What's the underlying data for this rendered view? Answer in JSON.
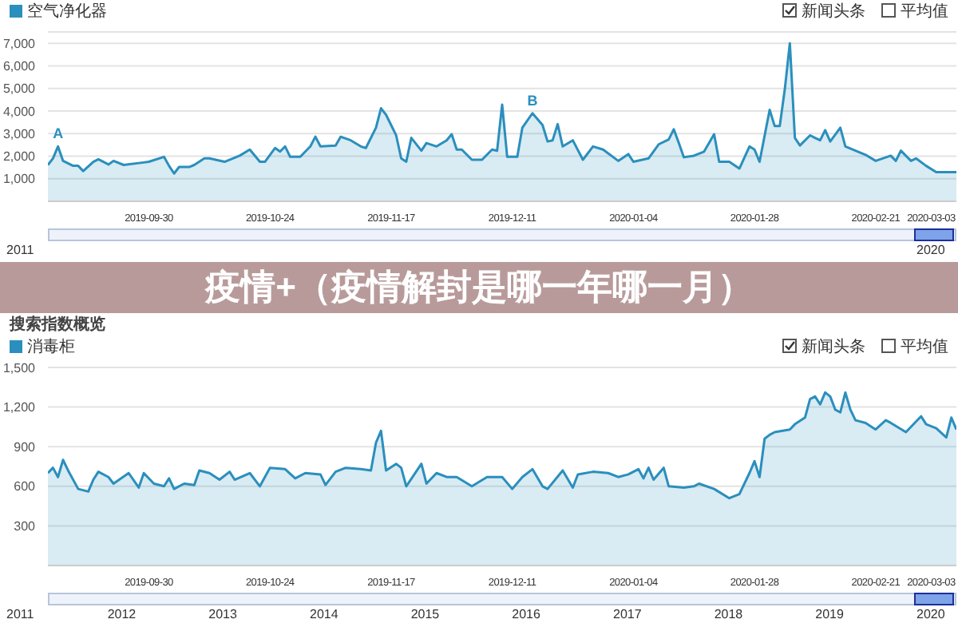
{
  "chart_data": [
    {
      "type": "area",
      "legend": "top left",
      "grid": "y",
      "xlim": [
        "2019-09-10",
        "2020-03-08"
      ],
      "xticks": [
        "2019-09-30",
        "2019-10-24",
        "2019-11-17",
        "2019-12-11",
        "2020-01-04",
        "2020-01-28",
        "2020-02-21",
        "2020-03-03"
      ],
      "ylim": [
        0,
        7500
      ],
      "yticks": [
        {
          "value": 1000,
          "label": "1,000"
        },
        {
          "value": 2000,
          "label": "2,000"
        },
        {
          "value": 3000,
          "label": "3,000"
        },
        {
          "value": 4000,
          "label": "4,000"
        },
        {
          "value": 5000,
          "label": "5,000"
        },
        {
          "value": 6000,
          "label": "6,000"
        },
        {
          "value": 7000,
          "label": "7,000"
        }
      ],
      "annotations": [
        "新闻头条",
        "平均值",
        "2011",
        "2020",
        {
          "text": "A",
          "x": "2019-09-12",
          "y": 2430
        },
        {
          "text": "B",
          "x": "2019-12-15",
          "y": 3900
        }
      ],
      "series": [
        {
          "name": "空气净化器",
          "color": "#2a8fbd",
          "x": [
            "2019-09-10",
            "2019-09-11",
            "2019-09-12",
            "2019-09-13",
            "2019-09-15",
            "2019-09-16",
            "2019-09-17",
            "2019-09-19",
            "2019-09-20",
            "2019-09-22",
            "2019-09-23",
            "2019-09-25",
            "2019-09-29",
            "2019-09-30",
            "2019-10-03",
            "2019-10-04",
            "2019-10-05",
            "2019-10-06",
            "2019-10-08",
            "2019-10-09",
            "2019-10-11",
            "2019-10-12",
            "2019-10-15",
            "2019-10-18",
            "2019-10-20",
            "2019-10-22",
            "2019-10-23",
            "2019-10-25",
            "2019-10-26",
            "2019-10-27",
            "2019-10-28",
            "2019-10-30",
            "2019-11-01",
            "2019-11-02",
            "2019-11-03",
            "2019-11-06",
            "2019-11-07",
            "2019-11-09",
            "2019-11-11",
            "2019-11-12",
            "2019-11-14",
            "2019-11-15",
            "2019-11-16",
            "2019-11-18",
            "2019-11-19",
            "2019-11-20",
            "2019-11-21",
            "2019-11-23",
            "2019-11-24",
            "2019-11-26",
            "2019-11-28",
            "2019-11-29",
            "2019-11-30",
            "2019-12-01",
            "2019-12-03",
            "2019-12-05",
            "2019-12-07",
            "2019-12-08",
            "2019-12-09",
            "2019-12-10",
            "2019-12-12",
            "2019-12-13",
            "2019-12-15",
            "2019-12-17",
            "2019-12-18",
            "2019-12-19",
            "2019-12-20",
            "2019-12-21",
            "2019-12-23",
            "2019-12-25",
            "2019-12-27",
            "2019-12-29",
            "2020-01-01",
            "2020-01-03",
            "2020-01-04",
            "2020-01-07",
            "2020-01-09",
            "2020-01-11",
            "2020-01-12",
            "2020-01-13",
            "2020-01-14",
            "2020-01-16",
            "2020-01-18",
            "2020-01-20",
            "2020-01-21",
            "2020-01-23",
            "2020-01-25",
            "2020-01-27",
            "2020-01-28",
            "2020-01-29",
            "2020-01-31",
            "2020-02-01",
            "2020-02-02",
            "2020-02-03",
            "2020-02-04",
            "2020-02-05",
            "2020-02-06",
            "2020-02-08",
            "2020-02-09",
            "2020-02-10",
            "2020-02-11",
            "2020-02-12",
            "2020-02-14",
            "2020-02-15",
            "2020-02-17",
            "2020-02-19",
            "2020-02-21",
            "2020-02-24",
            "2020-02-25",
            "2020-02-26",
            "2020-02-28",
            "2020-02-29",
            "2020-03-02",
            "2020-03-04",
            "2020-03-06",
            "2020-03-08"
          ],
          "values": [
            1610,
            1900,
            2430,
            1790,
            1570,
            1570,
            1340,
            1750,
            1860,
            1630,
            1790,
            1610,
            1720,
            1750,
            1970,
            1570,
            1230,
            1520,
            1520,
            1610,
            1900,
            1900,
            1750,
            2020,
            2290,
            1750,
            1750,
            2360,
            2200,
            2430,
            1970,
            1970,
            2430,
            2860,
            2430,
            2470,
            2860,
            2700,
            2430,
            2360,
            3260,
            4120,
            3830,
            2920,
            1900,
            1750,
            2810,
            2240,
            2580,
            2430,
            2700,
            2970,
            2290,
            2290,
            1840,
            1840,
            2290,
            2240,
            4280,
            1970,
            1970,
            3260,
            3900,
            3380,
            2650,
            2700,
            3420,
            2430,
            2700,
            1840,
            2430,
            2290,
            1790,
            2090,
            1750,
            1900,
            2520,
            2740,
            3190,
            2580,
            1950,
            2020,
            2200,
            2970,
            1750,
            1750,
            1450,
            2430,
            2290,
            1750,
            4050,
            3330,
            3330,
            4960,
            7000,
            2810,
            2470,
            2920,
            2810,
            2700,
            3150,
            2650,
            3260,
            2430,
            2240,
            2060,
            1790,
            2020,
            1790,
            2240,
            1790,
            1900,
            1570,
            1290,
            1290,
            1290
          ]
        }
      ]
    },
    {
      "type": "area",
      "title": "疫情+（疫情解封是哪一年哪一月）",
      "subtitle": "搜索指数概览",
      "legend": "top left",
      "grid": "y",
      "xlim": [
        "2019-09-10",
        "2020-03-08"
      ],
      "xticks": [
        "2019-09-30",
        "2019-10-24",
        "2019-11-17",
        "2019-12-11",
        "2020-01-04",
        "2020-01-28",
        "2020-02-21",
        "2020-03-03"
      ],
      "ylim": [
        0,
        1500
      ],
      "yticks": [
        300,
        600,
        900,
        {
          "value": 1200,
          "label": "1,200"
        },
        {
          "value": 1500,
          "label": "1,500"
        }
      ],
      "annotations": [
        "新闻头条",
        "平均值",
        "2011",
        "2012",
        "2013",
        "2014",
        "2015",
        "2016",
        "2017",
        "2018",
        "2019",
        "2020"
      ],
      "series": [
        {
          "name": "消毒柜",
          "color": "#2a8fbd",
          "x": [
            "2019-09-10",
            "2019-09-11",
            "2019-09-12",
            "2019-09-13",
            "2019-09-14",
            "2019-09-16",
            "2019-09-18",
            "2019-09-19",
            "2019-09-20",
            "2019-09-22",
            "2019-09-23",
            "2019-09-26",
            "2019-09-28",
            "2019-09-29",
            "2019-10-01",
            "2019-10-03",
            "2019-10-04",
            "2019-10-05",
            "2019-10-07",
            "2019-10-09",
            "2019-10-10",
            "2019-10-12",
            "2019-10-14",
            "2019-10-16",
            "2019-10-17",
            "2019-10-20",
            "2019-10-22",
            "2019-10-24",
            "2019-10-27",
            "2019-10-29",
            "2019-10-31",
            "2019-11-03",
            "2019-11-04",
            "2019-11-06",
            "2019-11-08",
            "2019-11-11",
            "2019-11-13",
            "2019-11-14",
            "2019-11-15",
            "2019-11-16",
            "2019-11-18",
            "2019-11-19",
            "2019-11-20",
            "2019-11-23",
            "2019-11-24",
            "2019-11-26",
            "2019-11-28",
            "2019-11-30",
            "2019-12-03",
            "2019-12-06",
            "2019-12-09",
            "2019-12-11",
            "2019-12-13",
            "2019-12-15",
            "2019-12-17",
            "2019-12-18",
            "2019-12-21",
            "2019-12-23",
            "2019-12-24",
            "2019-12-27",
            "2019-12-30",
            "2020-01-01",
            "2020-01-03",
            "2020-01-05",
            "2020-01-06",
            "2020-01-07",
            "2020-01-08",
            "2020-01-10",
            "2020-01-11",
            "2020-01-14",
            "2020-01-16",
            "2020-01-17",
            "2020-01-20",
            "2020-01-23",
            "2020-01-25",
            "2020-01-27",
            "2020-01-28",
            "2020-01-29",
            "2020-01-30",
            "2020-01-31",
            "2020-02-01",
            "2020-02-04",
            "2020-02-05",
            "2020-02-07",
            "2020-02-08",
            "2020-02-09",
            "2020-02-10",
            "2020-02-11",
            "2020-02-12",
            "2020-02-13",
            "2020-02-14",
            "2020-02-15",
            "2020-02-16",
            "2020-02-17",
            "2020-02-19",
            "2020-02-21",
            "2020-02-23",
            "2020-02-24",
            "2020-02-27",
            "2020-02-29",
            "2020-03-01",
            "2020-03-02",
            "2020-03-04",
            "2020-03-06",
            "2020-03-07",
            "2020-03-08"
          ],
          "values": [
            700,
            740,
            670,
            800,
            720,
            580,
            560,
            650,
            710,
            670,
            620,
            700,
            590,
            700,
            620,
            600,
            660,
            580,
            620,
            610,
            720,
            700,
            650,
            710,
            650,
            700,
            600,
            740,
            730,
            660,
            700,
            690,
            610,
            710,
            740,
            730,
            720,
            930,
            1020,
            720,
            770,
            740,
            600,
            770,
            620,
            700,
            670,
            670,
            600,
            670,
            670,
            580,
            670,
            730,
            600,
            580,
            720,
            590,
            690,
            710,
            700,
            670,
            690,
            730,
            660,
            740,
            650,
            740,
            600,
            590,
            600,
            620,
            580,
            510,
            540,
            700,
            790,
            670,
            960,
            990,
            1010,
            1030,
            1070,
            1120,
            1260,
            1280,
            1220,
            1310,
            1280,
            1180,
            1160,
            1310,
            1180,
            1100,
            1080,
            1030,
            1100,
            1080,
            1010,
            1090,
            1130,
            1070,
            1040,
            970,
            1120,
            1030
          ]
        }
      ]
    }
  ]
}
